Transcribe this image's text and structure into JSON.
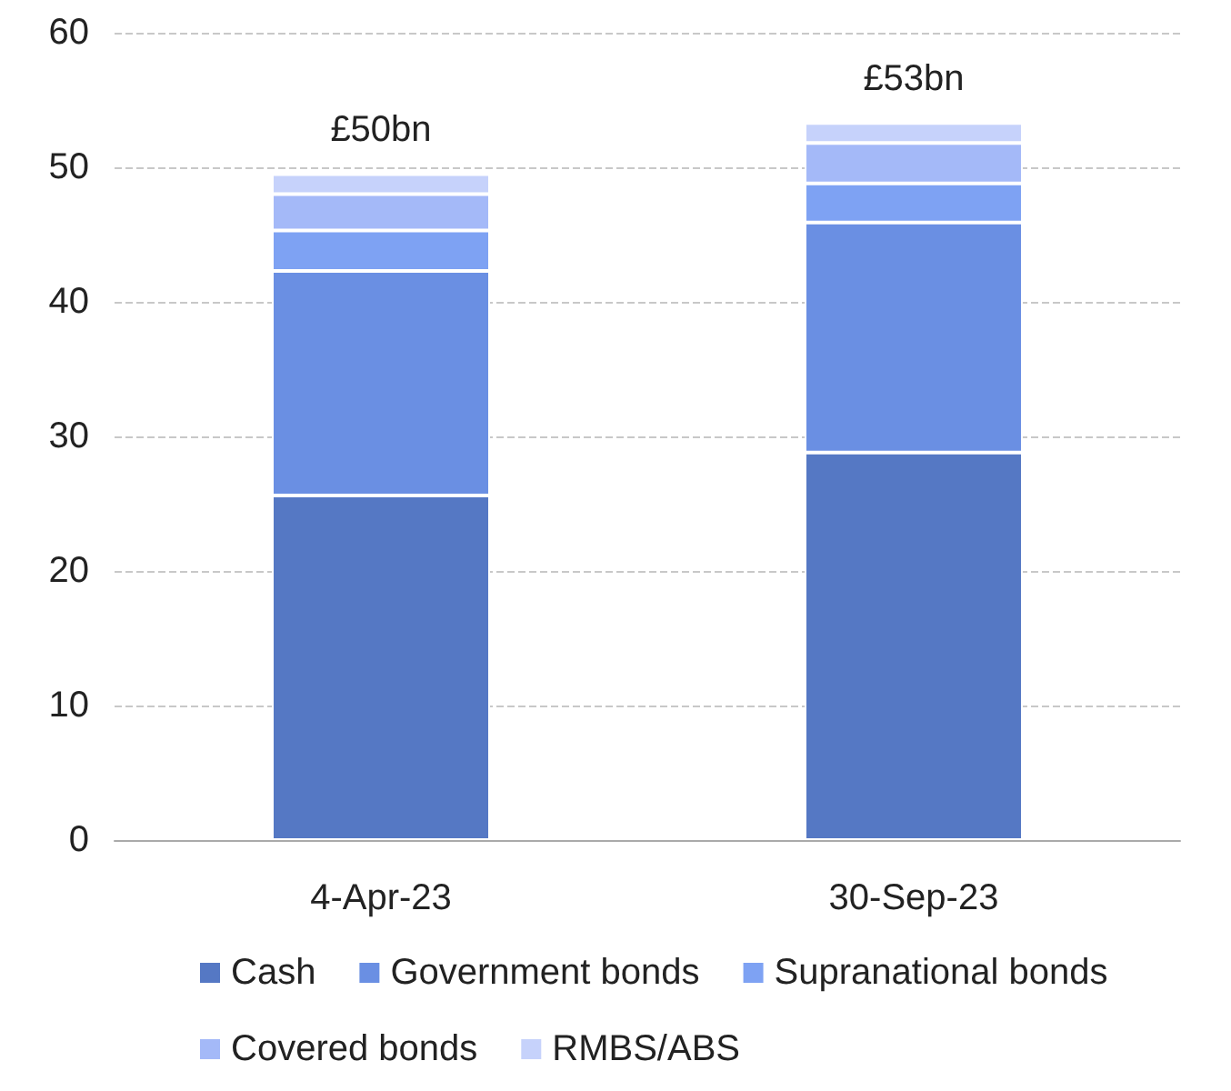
{
  "chart_data": {
    "type": "bar",
    "stacked": true,
    "categories": [
      "4-Apr-23",
      "30-Sep-23"
    ],
    "series": [
      {
        "name": "Cash",
        "color": "#5578c4",
        "values": [
          25.6,
          28.8
        ]
      },
      {
        "name": "Government bonds",
        "color": "#6a8fe3",
        "values": [
          16.7,
          17.1
        ]
      },
      {
        "name": "Supranational bonds",
        "color": "#7ea2f3",
        "values": [
          3.0,
          2.9
        ]
      },
      {
        "name": "Covered bonds",
        "color": "#a4b9f8",
        "values": [
          2.7,
          3.0
        ]
      },
      {
        "name": "RMBS/ABS",
        "color": "#c6d2fb",
        "values": [
          1.5,
          1.5
        ]
      }
    ],
    "totals": [
      "£50bn",
      "£53bn"
    ],
    "ylim": [
      0,
      60
    ],
    "yticks": [
      0,
      10,
      20,
      30,
      40,
      50,
      60
    ],
    "grid": "y",
    "legend": "bottom"
  }
}
